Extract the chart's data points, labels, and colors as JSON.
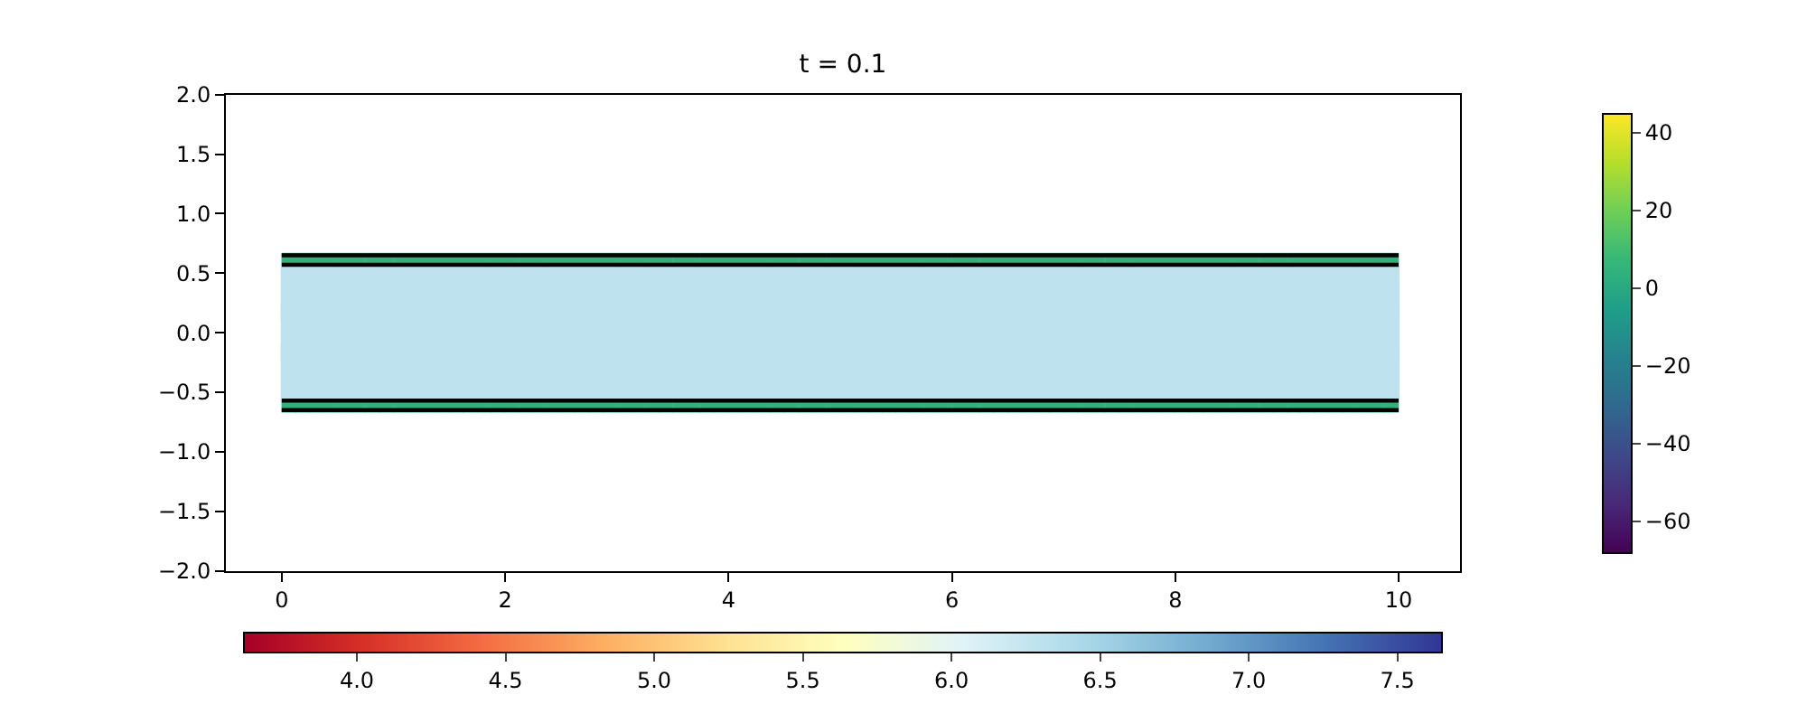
{
  "chart_data": [
    {
      "type": "scatter",
      "title": "t = 0.1",
      "xlim": [
        -0.5,
        10.55
      ],
      "ylim": [
        -2,
        2
      ],
      "xticks": [
        0,
        2,
        4,
        6,
        8,
        10
      ],
      "yticks": [
        {
          "value": -2,
          "label": "−2.0"
        },
        {
          "value": -1.5,
          "label": "−1.5"
        },
        {
          "value": -1,
          "label": "−1.0"
        },
        {
          "value": -0.5,
          "label": "−0.5"
        },
        {
          "value": 0,
          "label": "0.0"
        },
        {
          "value": 0.5,
          "label": "0.5"
        },
        {
          "value": 1,
          "label": "1.0"
        },
        {
          "value": 1.5,
          "label": "1.5"
        },
        {
          "value": 2,
          "label": "2.0"
        }
      ],
      "clim": [
        3.62,
        7.65
      ],
      "cticks": [
        {
          "value": 4,
          "label": "4.0"
        },
        {
          "value": 4.5,
          "label": "4.5"
        },
        {
          "value": 5,
          "label": "5.0"
        },
        {
          "value": 5.5,
          "label": "5.5"
        },
        {
          "value": 6,
          "label": "6.0"
        },
        {
          "value": 6.5,
          "label": "6.5"
        },
        {
          "value": 7,
          "label": "7.0"
        },
        {
          "value": 7.5,
          "label": "7.5"
        }
      ],
      "series": [
        {
          "marker": "square",
          "x": [
            0.25,
            0.75,
            1.25,
            1.75,
            2.25,
            2.75,
            3.25,
            3.75,
            4.25,
            4.75,
            5.25,
            5.75,
            6.25,
            6.75,
            7.25,
            7.75,
            8.25,
            8.75,
            9.25,
            9.75,
            0.25,
            0.75,
            1.25,
            1.75,
            2.25,
            2.75,
            3.25,
            3.75,
            4.25,
            4.75,
            5.25,
            5.75,
            6.25,
            6.75,
            7.25,
            7.75,
            8.25,
            8.75,
            9.25,
            9.75,
            0.25,
            0.75,
            1.25,
            1.75,
            2.25,
            2.75,
            3.25,
            3.75,
            4.25,
            4.75,
            5.25,
            5.75,
            6.25,
            6.75,
            7.25,
            7.75,
            8.25,
            8.75,
            9.25,
            9.75
          ],
          "values": [
            0.34,
            0.34,
            0.34,
            0.34,
            0.34,
            0.34,
            0.34,
            0.34,
            0.34,
            0.34,
            0.34,
            0.34,
            0.34,
            0.34,
            0.34,
            0.34,
            0.34,
            0.34,
            0.34,
            0.34,
            0,
            0,
            0,
            0,
            0,
            0,
            0,
            0,
            0,
            0,
            0,
            0,
            0,
            0,
            0,
            0,
            0,
            0,
            0,
            0,
            -0.34,
            -0.34,
            -0.34,
            -0.34,
            -0.34,
            -0.34,
            -0.34,
            -0.34,
            -0.34,
            -0.34,
            -0.34,
            -0.34,
            -0.34,
            -0.34,
            -0.34,
            -0.34,
            -0.34,
            -0.34,
            -0.34,
            -0.34
          ],
          "cvalues": [
            6.3,
            6.3,
            6.3,
            6.3,
            6.3,
            6.3,
            6.3,
            6.3,
            6.3,
            6.3,
            6.3,
            6.3,
            6.3,
            6.3,
            6.3,
            6.3,
            6.3,
            6.3,
            6.3,
            6.3,
            6.3,
            6.3,
            6.3,
            6.3,
            6.3,
            6.3,
            6.3,
            6.3,
            6.3,
            6.3,
            6.3,
            6.3,
            6.3,
            6.3,
            6.3,
            6.3,
            6.3,
            6.3,
            6.3,
            6.3,
            6.3,
            6.3,
            6.3,
            6.3,
            6.3,
            6.3,
            6.3,
            6.3,
            6.3,
            6.3,
            6.3,
            6.3,
            6.3,
            6.3,
            6.3,
            6.3,
            6.3,
            6.3,
            6.3,
            6.3
          ]
        },
        {
          "type": "line",
          "color": "#000000",
          "x": [
            0,
            10
          ],
          "values": [
            0.65,
            0.65
          ]
        },
        {
          "type": "line",
          "color": "#000000",
          "x": [
            0,
            10
          ],
          "values": [
            0.57,
            0.57
          ]
        },
        {
          "type": "line",
          "color": "#000000",
          "x": [
            0,
            10
          ],
          "values": [
            -0.57,
            -0.57
          ]
        },
        {
          "type": "line",
          "color": "#000000",
          "x": [
            0,
            10
          ],
          "values": [
            -0.65,
            -0.65
          ]
        }
      ]
    },
    {
      "type": "scatter",
      "xlim": [
        -0.5,
        10.55
      ],
      "ylim": [
        -2,
        2
      ],
      "clim": [
        -68,
        45
      ],
      "cticks": [
        {
          "value": -60,
          "label": "−60"
        },
        {
          "value": -40,
          "label": "−40"
        },
        {
          "value": -20,
          "label": "−20"
        },
        {
          "value": 0,
          "label": "0"
        },
        {
          "value": 20,
          "label": "20"
        },
        {
          "value": 40,
          "label": "40"
        }
      ],
      "series": [
        {
          "marker": "square",
          "x": [
            0.0625,
            0.1875,
            0.3125,
            0.4375,
            0.5625,
            0.6875,
            0.8125,
            0.9375,
            1.0625,
            1.1875,
            1.3125,
            1.4375,
            1.5625,
            1.6875,
            1.8125,
            1.9375,
            2.0625,
            2.1875,
            2.3125,
            2.4375,
            2.5625,
            2.6875,
            2.8125,
            2.9375,
            3.0625,
            3.1875,
            3.3125,
            3.4375,
            3.5625,
            3.6875,
            3.8125,
            3.9375,
            4.0625,
            4.1875,
            4.3125,
            4.4375,
            4.5625,
            4.6875,
            4.8125,
            4.9375,
            5.0625,
            5.1875,
            5.3125,
            5.4375,
            5.5625,
            5.6875,
            5.8125,
            5.9375,
            6.0625,
            6.1875,
            6.3125,
            6.4375,
            6.5625,
            6.6875,
            6.8125,
            6.9375,
            7.0625,
            7.1875,
            7.3125,
            7.4375,
            7.5625,
            7.6875,
            7.8125,
            7.9375,
            8.0625,
            8.1875,
            8.3125,
            8.4375,
            8.5625,
            8.6875,
            8.8125,
            8.9375,
            9.0625,
            9.1875,
            9.3125,
            9.4375,
            9.5625,
            9.6875,
            9.8125,
            9.9375
          ],
          "values": [
            0.61,
            0.61,
            0.61,
            0.61,
            0.61,
            0.61,
            0.61,
            0.61,
            0.61,
            0.61,
            0.61,
            0.61,
            0.61,
            0.61,
            0.61,
            0.61,
            0.61,
            0.61,
            0.61,
            0.61,
            0.61,
            0.61,
            0.61,
            0.61,
            0.61,
            0.61,
            0.61,
            0.61,
            0.61,
            0.61,
            0.61,
            0.61,
            0.61,
            0.61,
            0.61,
            0.61,
            0.61,
            0.61,
            0.61,
            0.61,
            0.61,
            0.61,
            0.61,
            0.61,
            0.61,
            0.61,
            0.61,
            0.61,
            0.61,
            0.61,
            0.61,
            0.61,
            0.61,
            0.61,
            0.61,
            0.61,
            0.61,
            0.61,
            0.61,
            0.61,
            0.61,
            0.61,
            0.61,
            0.61,
            0.61,
            0.61,
            0.61,
            0.61,
            0.61,
            0.61,
            0.61,
            0.61,
            0.61,
            0.61,
            0.61,
            0.61,
            0.61,
            0.61,
            0.61,
            0.61
          ],
          "cvalues": [
            5,
            5,
            5,
            5,
            5,
            5,
            5,
            5,
            5,
            5,
            5,
            5,
            5,
            5,
            5,
            5,
            5,
            5,
            5,
            5,
            5,
            5,
            5,
            5,
            5,
            5,
            5,
            5,
            5,
            5,
            5,
            5,
            5,
            5,
            5,
            5,
            5,
            5,
            5,
            5,
            5,
            5,
            5,
            5,
            5,
            5,
            5,
            5,
            5,
            5,
            5,
            5,
            5,
            5,
            5,
            5,
            5,
            5,
            5,
            5,
            5,
            5,
            5,
            5,
            5,
            5,
            5,
            5,
            5,
            5,
            5,
            5,
            5,
            5,
            5,
            5,
            5,
            5,
            5,
            5
          ]
        },
        {
          "marker": "square",
          "x": [
            0.0625,
            0.1875,
            0.3125,
            0.4375,
            0.5625,
            0.6875,
            0.8125,
            0.9375,
            1.0625,
            1.1875,
            1.3125,
            1.4375,
            1.5625,
            1.6875,
            1.8125,
            1.9375,
            2.0625,
            2.1875,
            2.3125,
            2.4375,
            2.5625,
            2.6875,
            2.8125,
            2.9375,
            3.0625,
            3.1875,
            3.3125,
            3.4375,
            3.5625,
            3.6875,
            3.8125,
            3.9375,
            4.0625,
            4.1875,
            4.3125,
            4.4375,
            4.5625,
            4.6875,
            4.8125,
            4.9375,
            5.0625,
            5.1875,
            5.3125,
            5.4375,
            5.5625,
            5.6875,
            5.8125,
            5.9375,
            6.0625,
            6.1875,
            6.3125,
            6.4375,
            6.5625,
            6.6875,
            6.8125,
            6.9375,
            7.0625,
            7.1875,
            7.3125,
            7.4375,
            7.5625,
            7.6875,
            7.8125,
            7.9375,
            8.0625,
            8.1875,
            8.3125,
            8.4375,
            8.5625,
            8.6875,
            8.8125,
            8.9375,
            9.0625,
            9.1875,
            9.3125,
            9.4375,
            9.5625,
            9.6875,
            9.8125,
            9.9375
          ],
          "values": [
            -0.61,
            -0.61,
            -0.61,
            -0.61,
            -0.61,
            -0.61,
            -0.61,
            -0.61,
            -0.61,
            -0.61,
            -0.61,
            -0.61,
            -0.61,
            -0.61,
            -0.61,
            -0.61,
            -0.61,
            -0.61,
            -0.61,
            -0.61,
            -0.61,
            -0.61,
            -0.61,
            -0.61,
            -0.61,
            -0.61,
            -0.61,
            -0.61,
            -0.61,
            -0.61,
            -0.61,
            -0.61,
            -0.61,
            -0.61,
            -0.61,
            -0.61,
            -0.61,
            -0.61,
            -0.61,
            -0.61,
            -0.61,
            -0.61,
            -0.61,
            -0.61,
            -0.61,
            -0.61,
            -0.61,
            -0.61,
            -0.61,
            -0.61,
            -0.61,
            -0.61,
            -0.61,
            -0.61,
            -0.61,
            -0.61,
            -0.61,
            -0.61,
            -0.61,
            -0.61,
            -0.61,
            -0.61,
            -0.61,
            -0.61,
            -0.61,
            -0.61,
            -0.61,
            -0.61,
            -0.61,
            -0.61,
            -0.61,
            -0.61,
            -0.61,
            -0.61,
            -0.61,
            -0.61,
            -0.61,
            -0.61,
            -0.61,
            -0.61
          ],
          "cvalues": [
            5,
            5,
            5,
            5,
            5,
            5,
            5,
            5,
            5,
            5,
            5,
            5,
            5,
            5,
            5,
            5,
            5,
            5,
            5,
            5,
            5,
            5,
            5,
            5,
            5,
            5,
            5,
            5,
            5,
            5,
            5,
            5,
            5,
            5,
            5,
            5,
            5,
            5,
            5,
            5,
            5,
            5,
            5,
            5,
            5,
            5,
            5,
            5,
            5,
            5,
            5,
            5,
            5,
            5,
            5,
            5,
            5,
            5,
            5,
            5,
            5,
            5,
            5,
            5,
            5,
            5,
            5,
            5,
            5,
            5,
            5,
            5,
            5,
            5,
            5,
            5,
            5,
            5,
            5,
            5
          ]
        }
      ]
    }
  ]
}
